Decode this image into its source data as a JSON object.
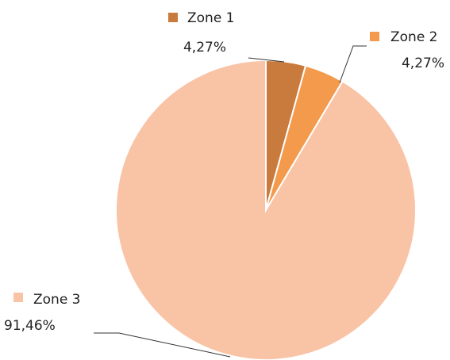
{
  "chart_data": {
    "type": "pie",
    "categories": [
      "Zone 1",
      "Zone 2",
      "Zone 3"
    ],
    "values": [
      4.27,
      4.27,
      91.46
    ],
    "value_labels": [
      "4,27%",
      "4,27%",
      "91,46%"
    ],
    "colors": [
      "#c97a3d",
      "#f39a4c",
      "#f9c3a6"
    ]
  }
}
